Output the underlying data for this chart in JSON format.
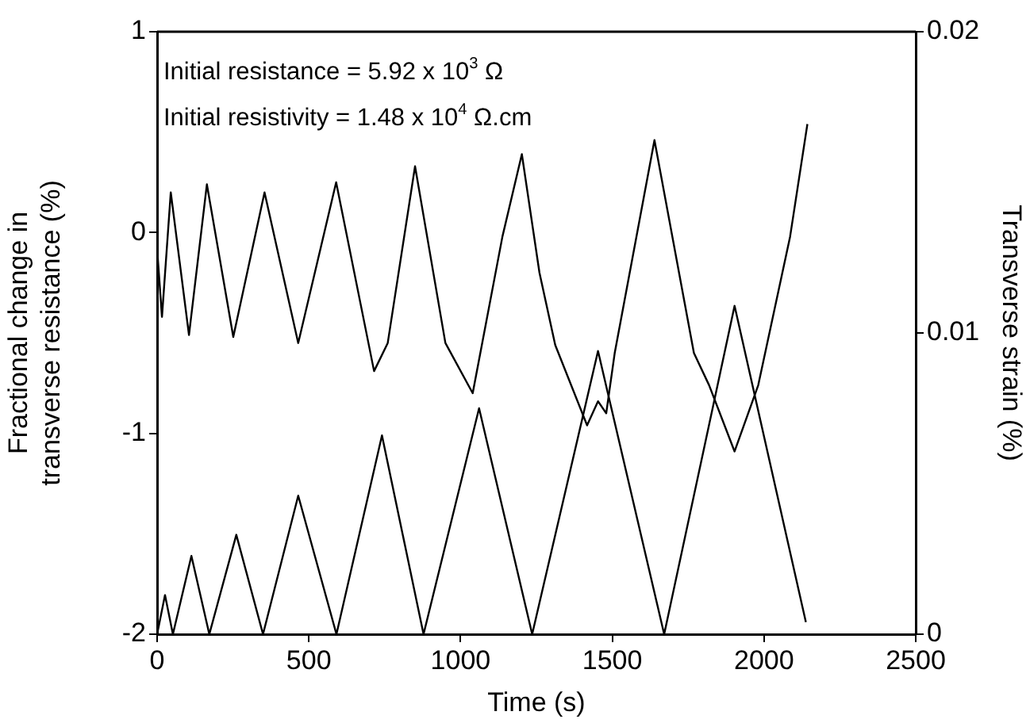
{
  "chart_data": {
    "type": "line",
    "xlabel": "Time (s)",
    "ylabel": "Fractional change in\ntransverse resistance (%)",
    "y2label": "Transverse strain (%)",
    "xlim": [
      0,
      2500
    ],
    "xticks": [
      0,
      500,
      1000,
      1500,
      2000,
      2500
    ],
    "ylim": [
      -2,
      1
    ],
    "yticks": [
      -2,
      -1,
      0,
      1
    ],
    "y2lim": [
      0,
      0.02
    ],
    "y2ticks": [
      0,
      0.01,
      0.02
    ],
    "grid": false,
    "legend": false,
    "marker": "none",
    "line_style": "solid",
    "annotations": [
      "Initial resistance = 5.92 x 10$^{3}$ Ω",
      "Initial resistivity = 1.48 x 10$^{4}$ Ω.cm"
    ],
    "series": [
      {
        "color": "#000000",
        "x": [
          0,
          16,
          45,
          105,
          164,
          251,
          354,
          465,
          590,
          715,
          760,
          850,
          950,
          1040,
          1138,
          1202,
          1260,
          1312,
          1417,
          1453,
          1480,
          1508,
          1639,
          1769,
          1819,
          1903,
          1981,
          2086,
          2143
        ],
        "values": [
          -0.08,
          -0.42,
          0.2,
          -0.51,
          0.24,
          -0.52,
          0.2,
          -0.55,
          0.25,
          -0.69,
          -0.55,
          0.33,
          -0.55,
          -0.8,
          -0.02,
          0.39,
          -0.2,
          -0.56,
          -0.96,
          -0.84,
          -0.9,
          -0.6,
          0.46,
          -0.6,
          -0.76,
          -1.09,
          -0.76,
          -0.02,
          0.54
        ]
      },
      {
        "color": "#000000",
        "axis": "y2",
        "x": [
          0,
          26,
          52,
          113,
          172,
          261,
          349,
          465,
          591,
          741,
          878,
          1061,
          1236,
          1453,
          1671,
          1903,
          2138
        ],
        "values": [
          0,
          0.0013,
          0,
          0.0026,
          0,
          0.0033,
          0,
          0.0046,
          0,
          0.0066,
          0,
          0.0075,
          0,
          0.0094,
          0,
          0.0109,
          0.0004
        ]
      }
    ]
  }
}
